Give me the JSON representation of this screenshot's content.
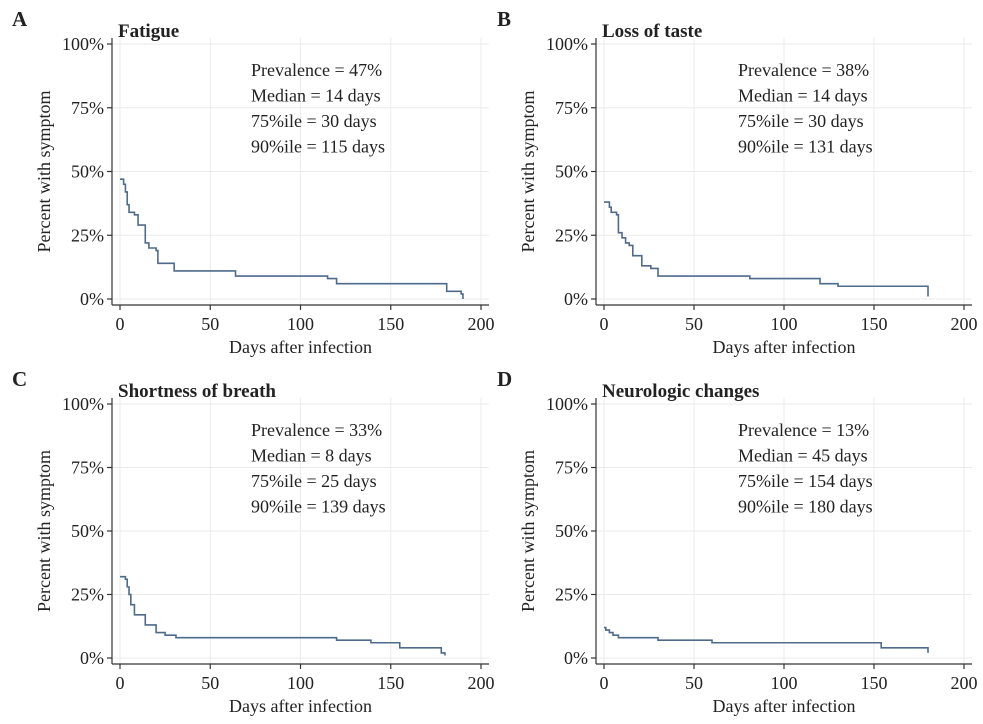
{
  "colors": {
    "curve": "#4e6b8c",
    "grid": "#ebebeb",
    "axis": "#333333",
    "text": "#222222"
  },
  "chart_data": [
    {
      "type": "line",
      "step": "post",
      "panel": "A",
      "title": "Fatigue",
      "xlabel": "Days after infection",
      "ylabel": "Percent with symptom",
      "xlim": [
        0,
        200
      ],
      "ylim": [
        0,
        100
      ],
      "xticks": [
        0,
        50,
        100,
        150,
        200
      ],
      "yticks": [
        0,
        25,
        50,
        75,
        100
      ],
      "ytick_labels": [
        "0%",
        "25%",
        "50%",
        "75%",
        "100%"
      ],
      "grid": true,
      "stats": [
        "Prevalence = 47%",
        "Median = 14 days",
        "75%ile = 30 days",
        "90%ile = 115 days"
      ],
      "series": [
        {
          "x": [
            0,
            2,
            3,
            4,
            5,
            6,
            8,
            10,
            13,
            14,
            16,
            20,
            21,
            29,
            30,
            60,
            64,
            115,
            120,
            178,
            181,
            189,
            190
          ],
          "y": [
            47,
            45,
            42,
            37,
            34,
            34,
            33,
            29,
            29,
            22,
            20,
            19,
            14,
            14,
            11,
            11,
            9,
            8,
            6,
            6,
            3,
            2,
            0
          ]
        }
      ]
    },
    {
      "type": "line",
      "step": "post",
      "panel": "B",
      "title": "Loss of taste",
      "xlabel": "Days after infection",
      "ylabel": "Percent with symptom",
      "xlim": [
        0,
        200
      ],
      "ylim": [
        0,
        100
      ],
      "xticks": [
        0,
        50,
        100,
        150,
        200
      ],
      "yticks": [
        0,
        25,
        50,
        75,
        100
      ],
      "ytick_labels": [
        "0%",
        "25%",
        "50%",
        "75%",
        "100%"
      ],
      "grid": true,
      "stats": [
        "Prevalence = 38%",
        "Median = 14 days",
        "75%ile = 30 days",
        "90%ile = 131 days"
      ],
      "series": [
        {
          "x": [
            0,
            3,
            4,
            5,
            7,
            8,
            10,
            12,
            14,
            16,
            20,
            21,
            26,
            30,
            80,
            81,
            120,
            125,
            130,
            180
          ],
          "y": [
            38,
            36,
            34,
            34,
            33,
            26,
            24,
            22,
            21,
            17,
            17,
            13,
            12,
            9,
            9,
            8,
            6,
            6,
            5,
            1
          ]
        }
      ]
    },
    {
      "type": "line",
      "step": "post",
      "panel": "C",
      "title": "Shortness of breath",
      "xlabel": "Days after infection",
      "ylabel": "Percent with symptom",
      "xlim": [
        0,
        200
      ],
      "ylim": [
        0,
        100
      ],
      "xticks": [
        0,
        50,
        100,
        150,
        200
      ],
      "yticks": [
        0,
        25,
        50,
        75,
        100
      ],
      "ytick_labels": [
        "0%",
        "25%",
        "50%",
        "75%",
        "100%"
      ],
      "grid": true,
      "stats": [
        "Prevalence = 33%",
        "Median = 8 days",
        "75%ile = 25 days",
        "90%ile = 139 days"
      ],
      "series": [
        {
          "x": [
            0,
            3,
            4,
            5,
            6,
            8,
            14,
            20,
            25,
            31,
            115,
            120,
            139,
            155,
            178,
            180
          ],
          "y": [
            32,
            31,
            28,
            25,
            21,
            17,
            13,
            10,
            9,
            8,
            8,
            7,
            6,
            4,
            2,
            1
          ]
        }
      ]
    },
    {
      "type": "line",
      "step": "post",
      "panel": "D",
      "title": "Neurologic changes",
      "xlabel": "Days after infection",
      "ylabel": "Percent with symptom",
      "xlim": [
        0,
        200
      ],
      "ylim": [
        0,
        100
      ],
      "xticks": [
        0,
        50,
        100,
        150,
        200
      ],
      "yticks": [
        0,
        25,
        50,
        75,
        100
      ],
      "ytick_labels": [
        "0%",
        "25%",
        "50%",
        "75%",
        "100%"
      ],
      "grid": true,
      "stats": [
        "Prevalence = 13%",
        "Median = 45 days",
        "75%ile = 154 days",
        "90%ile = 180 days"
      ],
      "series": [
        {
          "x": [
            0,
            1,
            3,
            5,
            8,
            30,
            60,
            154,
            180
          ],
          "y": [
            12,
            11,
            10,
            9,
            8,
            7,
            6,
            4,
            2
          ]
        }
      ]
    }
  ]
}
